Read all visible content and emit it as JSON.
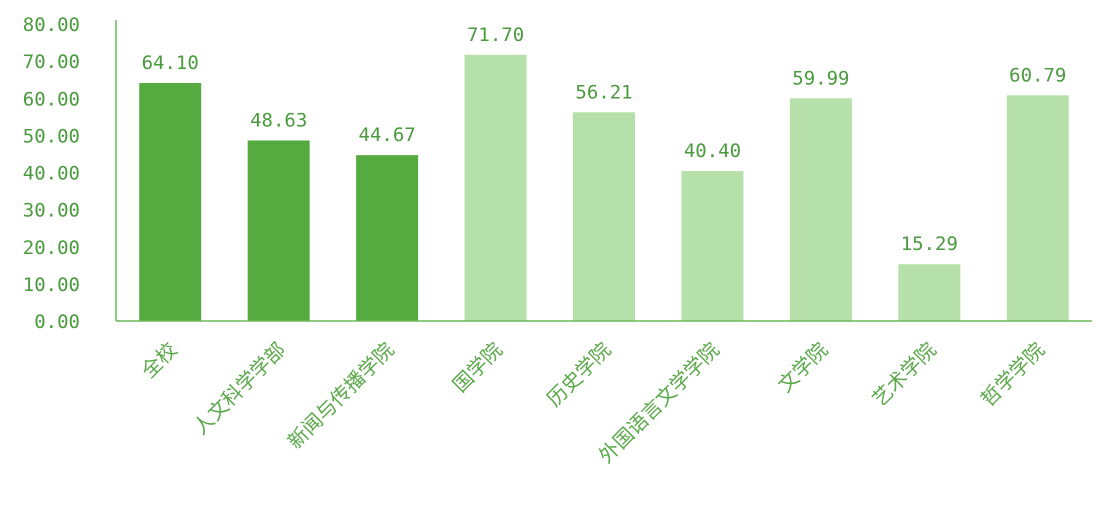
{
  "chart_data": {
    "type": "bar",
    "categories": [
      "全校",
      "人文科学学部",
      "新闻与传播学院",
      "国学院",
      "历史学院",
      "外国语言文学学院",
      "文学院",
      "艺术学院",
      "哲学学院"
    ],
    "values": [
      64.1,
      48.63,
      44.67,
      71.7,
      56.21,
      40.4,
      59.99,
      15.29,
      60.79
    ],
    "value_labels": [
      "64.10",
      "48.63",
      "44.67",
      "71.70",
      "56.21",
      "40.40",
      "59.99",
      "15.29",
      "60.79"
    ],
    "bar_colors": [
      "#55ab3f",
      "#55ab3f",
      "#55ab3f",
      "#b6e0a9",
      "#b6e0a9",
      "#b6e0a9",
      "#b6e0a9",
      "#b6e0a9",
      "#b6e0a9"
    ],
    "ylim": [
      0,
      80
    ],
    "yticks": [
      0,
      10,
      20,
      30,
      40,
      50,
      60,
      70,
      80
    ],
    "ytick_labels": [
      "0.00",
      "10.00",
      "20.00",
      "30.00",
      "40.00",
      "50.00",
      "60.00",
      "70.00",
      "80.00"
    ],
    "grid": false,
    "axis_color": "#6cb85a",
    "title": "",
    "xlabel": "",
    "ylabel": ""
  }
}
